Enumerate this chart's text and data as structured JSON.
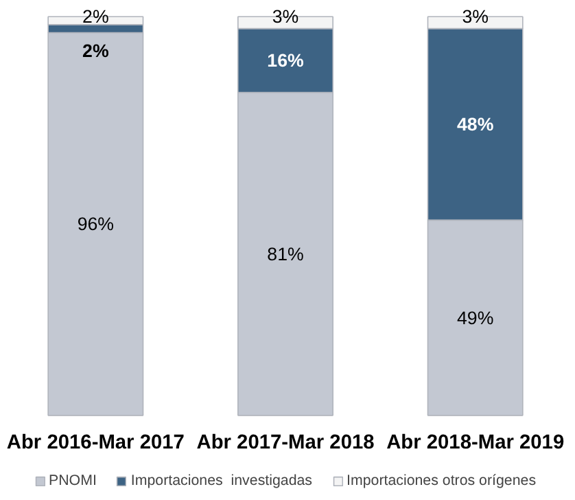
{
  "chart_data": {
    "type": "bar",
    "stacked": true,
    "categories": [
      "Abr 2016-Mar 2017",
      "Abr 2017-Mar 2018",
      "Abr 2018-Mar 2019"
    ],
    "series": [
      {
        "name": "PNOMI",
        "color": "#c3c8d2",
        "values": [
          96,
          81,
          49
        ],
        "value_labels": [
          "96%",
          "81%",
          "49%"
        ]
      },
      {
        "name": "Importaciones  investigadas",
        "color": "#3d6384",
        "values": [
          2,
          16,
          48
        ],
        "value_labels": [
          "2%",
          "16%",
          "48%"
        ]
      },
      {
        "name": "Importaciones otros orígenes",
        "color": "#f4f4f4",
        "values": [
          2,
          3,
          3
        ],
        "value_labels": [
          "2%",
          "3%",
          "3%"
        ]
      }
    ],
    "legend": "bottom"
  }
}
